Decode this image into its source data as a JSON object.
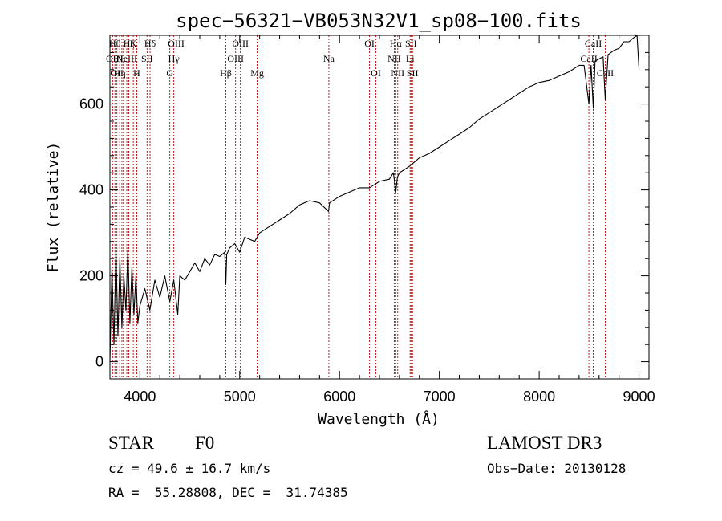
{
  "chart_data": {
    "type": "line",
    "title": "spec−56321−VB053N32V1_sp08−100.fits",
    "xlabel": "Wavelength (Å)",
    "ylabel": "Flux (relative)",
    "xlim": [
      3700,
      9100
    ],
    "ylim": [
      -40,
      760
    ],
    "xticks": [
      4000,
      5000,
      6000,
      7000,
      8000,
      9000
    ],
    "yticks": [
      0,
      200,
      400,
      600
    ],
    "grid": false,
    "series": [
      {
        "name": "flux",
        "x": [
          3700,
          3720,
          3740,
          3760,
          3780,
          3800,
          3820,
          3840,
          3860,
          3880,
          3900,
          3920,
          3940,
          3960,
          3980,
          4000,
          4050,
          4100,
          4150,
          4200,
          4250,
          4300,
          4340,
          4380,
          4400,
          4450,
          4500,
          4550,
          4600,
          4650,
          4700,
          4750,
          4800,
          4850,
          4861,
          4870,
          4900,
          4950,
          5000,
          5050,
          5100,
          5150,
          5200,
          5300,
          5400,
          5500,
          5600,
          5700,
          5800,
          5890,
          5900,
          6000,
          6100,
          6200,
          6300,
          6400,
          6500,
          6540,
          6563,
          6580,
          6600,
          6700,
          6800,
          6900,
          7000,
          7100,
          7200,
          7300,
          7400,
          7500,
          7600,
          7700,
          7800,
          7900,
          8000,
          8100,
          8200,
          8300,
          8400,
          8450,
          8498,
          8520,
          8542,
          8560,
          8600,
          8640,
          8662,
          8690,
          8750,
          8800,
          8850,
          8900,
          8950,
          8980,
          9000
        ],
        "y": [
          0,
          220,
          40,
          260,
          60,
          240,
          80,
          200,
          120,
          260,
          90,
          220,
          110,
          200,
          90,
          130,
          170,
          120,
          190,
          150,
          200,
          140,
          190,
          110,
          200,
          190,
          210,
          230,
          210,
          240,
          225,
          250,
          245,
          255,
          180,
          250,
          265,
          275,
          255,
          290,
          285,
          280,
          300,
          315,
          330,
          345,
          365,
          375,
          370,
          350,
          370,
          385,
          395,
          405,
          405,
          420,
          425,
          440,
          395,
          430,
          440,
          455,
          475,
          485,
          500,
          515,
          530,
          545,
          565,
          580,
          595,
          610,
          625,
          640,
          650,
          655,
          665,
          675,
          690,
          690,
          600,
          690,
          590,
          700,
          705,
          710,
          610,
          715,
          725,
          730,
          745,
          745,
          755,
          760,
          680
        ]
      }
    ],
    "spectral_lines": [
      {
        "wavelength": 3727,
        "label": "OII",
        "row": 2
      },
      {
        "wavelength": 3750,
        "label": "Hθ",
        "row": 1
      },
      {
        "wavelength": 3770,
        "label": "OII",
        "row": 3
      },
      {
        "wavelength": 3798,
        "label": "Hη",
        "row": 3
      },
      {
        "wavelength": 3820,
        "label": "He",
        "row": 2
      },
      {
        "wavelength": 3835,
        "label": "",
        "row": 0
      },
      {
        "wavelength": 3869,
        "label": "NeIII",
        "row": 2
      },
      {
        "wavelength": 3889,
        "label": "Hζ",
        "row": 0
      },
      {
        "wavelength": 3934,
        "label": "K",
        "row": 1
      },
      {
        "wavelength": 3969,
        "label": "H",
        "row": 3
      },
      {
        "wavelength": 4072,
        "label": "SII",
        "row": 2
      },
      {
        "wavelength": 4102,
        "label": "Hδ",
        "row": 1
      },
      {
        "wavelength": 4300,
        "label": "G",
        "row": 3
      },
      {
        "wavelength": 4340,
        "label": "Hγ",
        "row": 2
      },
      {
        "wavelength": 4363,
        "label": "OIII",
        "row": 1
      },
      {
        "wavelength": 4861,
        "label": "Hβ",
        "row": 3
      },
      {
        "wavelength": 4959,
        "label": "OIII",
        "row": 2
      },
      {
        "wavelength": 5007,
        "label": "OIII",
        "row": 1
      },
      {
        "wavelength": 5175,
        "label": "Mg",
        "row": 3
      },
      {
        "wavelength": 5893,
        "label": "Na",
        "row": 2
      },
      {
        "wavelength": 6300,
        "label": "OI",
        "row": 1
      },
      {
        "wavelength": 6364,
        "label": "OI",
        "row": 3
      },
      {
        "wavelength": 6548,
        "label": "NII",
        "row": 2
      },
      {
        "wavelength": 6563,
        "label": "Hα",
        "row": 1
      },
      {
        "wavelength": 6583,
        "label": "NII",
        "row": 3
      },
      {
        "wavelength": 6707,
        "label": "Li",
        "row": 2
      },
      {
        "wavelength": 6716,
        "label": "SII",
        "row": 1
      },
      {
        "wavelength": 6731,
        "label": "SII",
        "row": 3
      },
      {
        "wavelength": 8498,
        "label": "CaII",
        "row": 2
      },
      {
        "wavelength": 8542,
        "label": "CaII",
        "row": 1
      },
      {
        "wavelength": 8662,
        "label": "CaII",
        "row": 3
      }
    ]
  },
  "info": {
    "class": "STAR",
    "subclass": "F0",
    "cz": "cz = 49.6 ± 16.7 km/s",
    "radec": "RA =  55.28808, DEC =  31.74385",
    "survey": "LAMOST DR3",
    "obsdate": "Obs−Date: 20130128"
  }
}
